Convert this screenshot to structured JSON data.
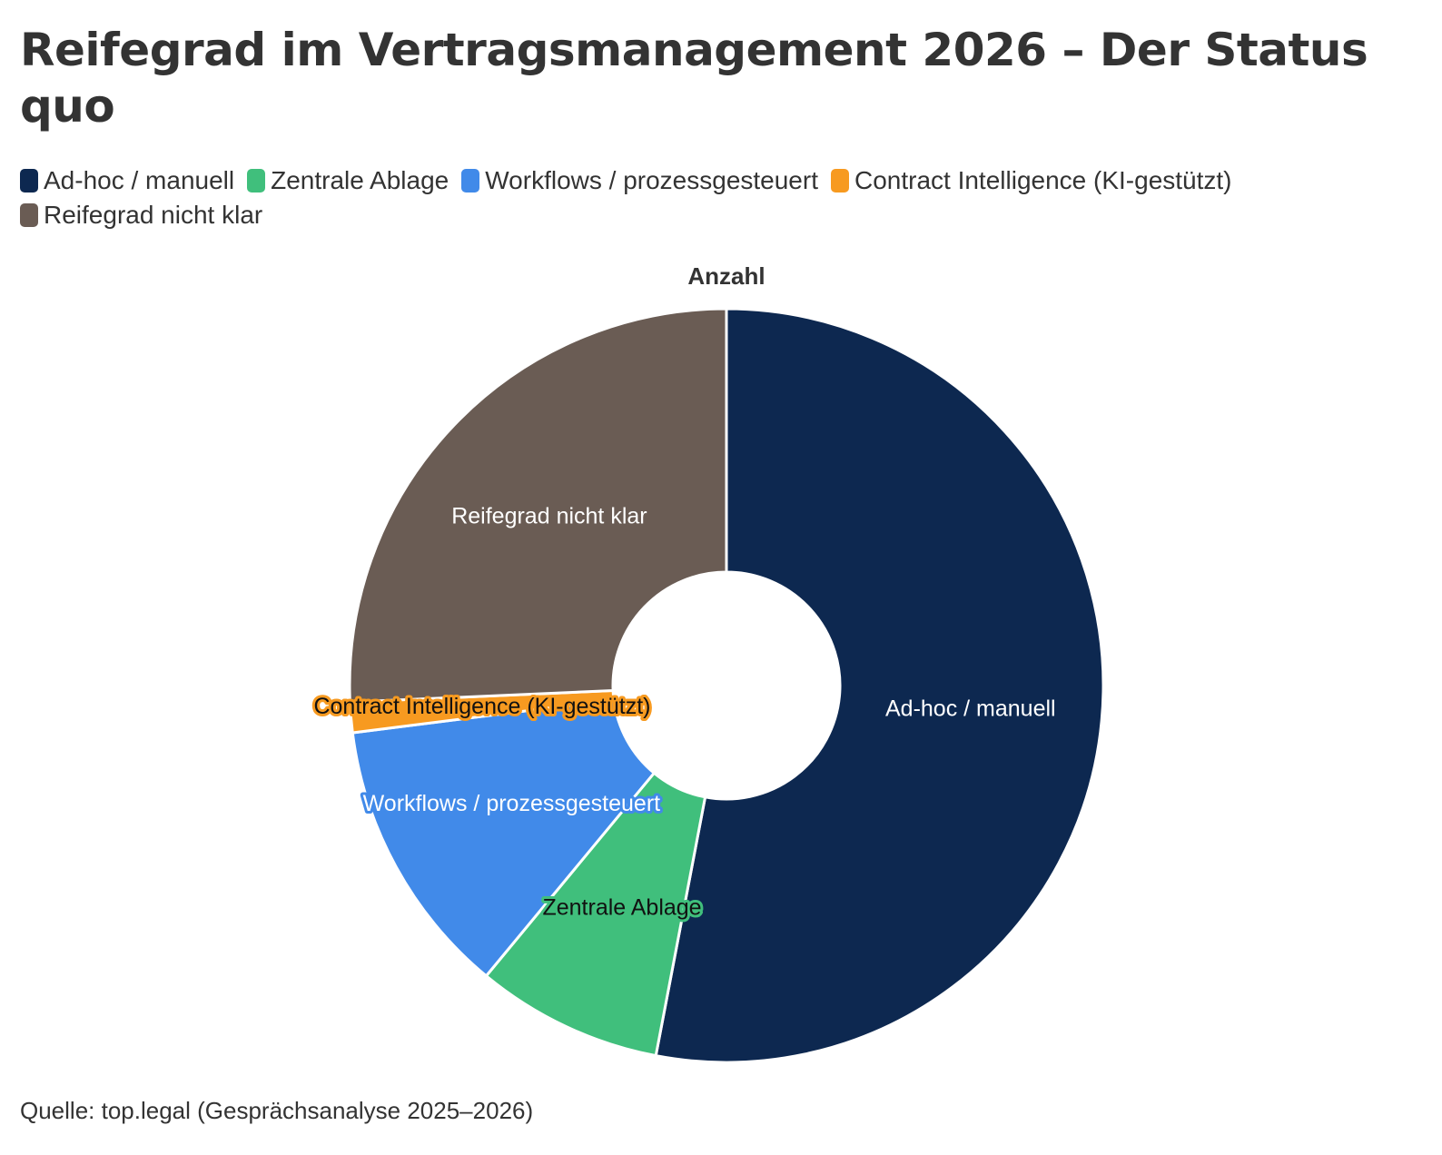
{
  "title": "Reifegrad im Vertragsmanagement 2026 – Der Status quo",
  "source": "Quelle: top.legal (Gesprächsanalyse 2025–2026)",
  "chart_data": {
    "type": "pie",
    "variant": "donut",
    "series_title": "Anzahl",
    "categories": [
      "Ad-hoc / manuell",
      "Zentrale Ablage",
      "Workflows / prozessgesteuert",
      "Contract Intelligence (KI-gestützt)",
      "Reifegrad nicht klar"
    ],
    "values": [
      53,
      8,
      12,
      1.3,
      25.7
    ],
    "colors": [
      "#0d2850",
      "#40bf7c",
      "#418ae9",
      "#f79a20",
      "#6a5c54"
    ],
    "label_colors": [
      "#ffffff",
      "#111111",
      "#ffffff",
      "#111111",
      "#ffffff"
    ],
    "legend_position": "top-left",
    "data_labels": "category name"
  }
}
